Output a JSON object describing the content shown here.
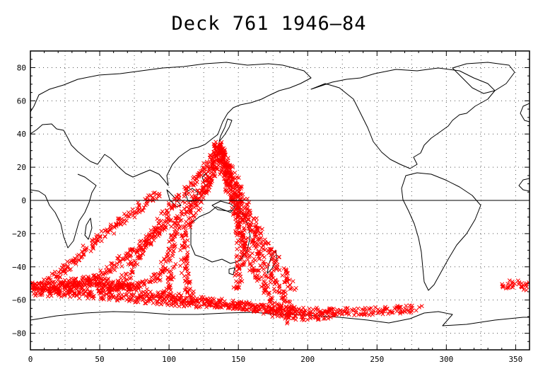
{
  "title": "Deck 761 1946–84",
  "map": {
    "x_ticks": [
      "0",
      "50",
      "100",
      "150",
      "200",
      "250",
      "300",
      "350"
    ],
    "y_ticks": [
      "80",
      "60",
      "40",
      "20",
      "0",
      "−20",
      "−40",
      "−60",
      "−80"
    ],
    "marker_color": "#ff0000",
    "land_color": "#000000",
    "marker_symbol": "x"
  },
  "chart_data": {
    "type": "scatter",
    "title": "Deck 761 1946–84",
    "xlabel": "",
    "ylabel": "",
    "xlim": [
      0,
      360
    ],
    "ylim": [
      -90,
      90
    ],
    "grid": true,
    "series": [
      {
        "tracks": [
          [
            [
              0,
              -52
            ],
            [
              20,
              -51
            ],
            [
              40,
              -48
            ],
            [
              60,
              -50
            ],
            [
              80,
              -57
            ],
            [
              100,
              -58
            ],
            [
              120,
              -60
            ],
            [
              140,
              -62
            ],
            [
              160,
              -64
            ],
            [
              180,
              -66
            ],
            [
              200,
              -67
            ],
            [
              230,
              -67
            ],
            [
              260,
              -66
            ],
            [
              280,
              -65
            ]
          ],
          [
            [
              0,
              -55
            ],
            [
              30,
              -56
            ],
            [
              60,
              -58
            ],
            [
              90,
              -60
            ],
            [
              120,
              -62
            ],
            [
              150,
              -63
            ],
            [
              180,
              -68
            ],
            [
              200,
              -70
            ],
            [
              220,
              -68
            ]
          ],
          [
            [
              136,
              33
            ],
            [
              133,
              20
            ],
            [
              126,
              8
            ],
            [
              116,
              -2
            ],
            [
              108,
              -10
            ],
            [
              104,
              -20
            ],
            [
              100,
              -35
            ],
            [
              92,
              -46
            ],
            [
              80,
              -52
            ],
            [
              60,
              -52
            ],
            [
              30,
              -52
            ],
            [
              0,
              -52
            ]
          ],
          [
            [
              136,
              33
            ],
            [
              132,
              20
            ],
            [
              125,
              5
            ],
            [
              118,
              -5
            ],
            [
              112,
              -20
            ],
            [
              110,
              -35
            ],
            [
              112,
              -48
            ],
            [
              116,
              -58
            ]
          ],
          [
            [
              136,
              33
            ],
            [
              140,
              20
            ],
            [
              145,
              5
            ],
            [
              150,
              -10
            ],
            [
              152,
              -30
            ],
            [
              150,
              -45
            ],
            [
              148,
              -55
            ]
          ],
          [
            [
              136,
              33
            ],
            [
              142,
              20
            ],
            [
              148,
              5
            ],
            [
              155,
              -10
            ],
            [
              162,
              -25
            ],
            [
              170,
              -40
            ],
            [
              180,
              -55
            ],
            [
              190,
              -68
            ]
          ],
          [
            [
              136,
              33
            ],
            [
              146,
              15
            ],
            [
              156,
              -5
            ],
            [
              168,
              -25
            ],
            [
              180,
              -40
            ],
            [
              190,
              -55
            ]
          ],
          [
            [
              136,
              33
            ],
            [
              140,
              15
            ],
            [
              150,
              -10
            ],
            [
              160,
              -40
            ],
            [
              175,
              -60
            ],
            [
              188,
              -72
            ]
          ],
          [
            [
              136,
              33
            ],
            [
              126,
              20
            ],
            [
              112,
              5
            ],
            [
              96,
              -10
            ],
            [
              80,
              -30
            ],
            [
              66,
              -50
            ],
            [
              50,
              -55
            ]
          ],
          [
            [
              102,
              -12
            ],
            [
              85,
              -24
            ],
            [
              60,
              -40
            ],
            [
              40,
              -50
            ],
            [
              20,
              -56
            ]
          ],
          [
            [
              92,
              5
            ],
            [
              70,
              -10
            ],
            [
              40,
              -30
            ],
            [
              10,
              -52
            ]
          ],
          [
            [
              102,
              -40
            ],
            [
              100,
              -50
            ],
            [
              96,
              -58
            ]
          ],
          [
            [
              340,
              -52
            ],
            [
              350,
              -50
            ],
            [
              360,
              -52
            ]
          ]
        ]
      }
    ]
  }
}
